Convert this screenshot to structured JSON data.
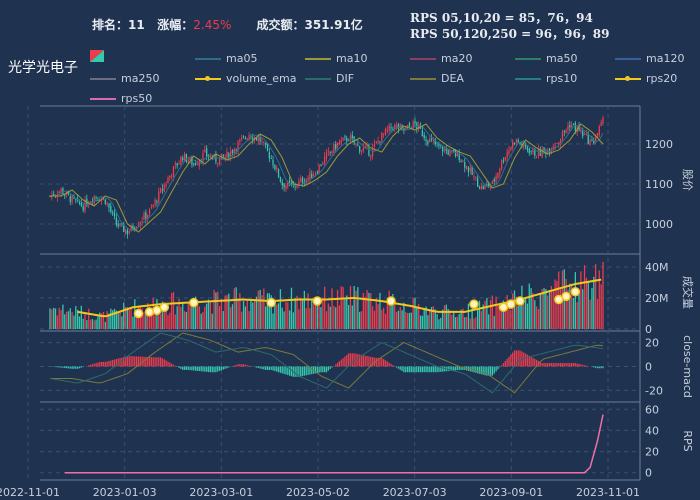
{
  "header": {
    "rank_label": "排名：",
    "rank_value": "11",
    "change_label": "涨幅：",
    "change_value": "2.45%",
    "turnover_label": "成交额：",
    "turnover_value": "351.91亿",
    "rps_line1": "RPS 05,10,20 = 85，76，94",
    "rps_line2": "RPS 50,120,250 = 96，96，89"
  },
  "stock_name": "光学光电子",
  "legend": [
    {
      "name": "ma05",
      "color": "#2f6e8a"
    },
    {
      "name": "ma10",
      "color": "#9a9a3a"
    },
    {
      "name": "ma20",
      "color": "#8a3f66"
    },
    {
      "name": "ma50",
      "color": "#2f7f6a"
    },
    {
      "name": "ma120",
      "color": "#3a5f9a"
    },
    {
      "name": "ma250",
      "color": "#6d6d80"
    },
    {
      "name": "volume_ema",
      "color": "#f2c81e"
    },
    {
      "name": "DIF",
      "color": "#2c6b6b"
    },
    {
      "name": "DEA",
      "color": "#7a7a3a"
    },
    {
      "name": "rps10",
      "color": "#2a7a8a"
    },
    {
      "name": "rps20",
      "color": "#f2c81e"
    },
    {
      "name": "rps50",
      "color": "#d968b8"
    }
  ],
  "colors": {
    "up": "#ef3b4c",
    "down": "#35c9ae",
    "bg": "#1f3250",
    "grid": "#3a5070",
    "axis": "#6b7f99"
  },
  "chart_data": {
    "type": "candlestick",
    "x_ticks": [
      "2022-11-01",
      "2023-01-03",
      "2023-03-01",
      "2023-05-02",
      "2023-07-03",
      "2023-09-01",
      "2023-11-01"
    ],
    "price": {
      "ylabel": "股价",
      "ticks": [
        1000,
        1100,
        1200
      ],
      "ylim": [
        930,
        1290
      ]
    },
    "volume": {
      "ylabel": "成交量",
      "ticks": [
        "0",
        "20M",
        "40M"
      ],
      "ylim": [
        0,
        47
      ]
    },
    "macd": {
      "ylabel": "close-macd",
      "ticks": [
        -20,
        0,
        20
      ],
      "ylim": [
        -28,
        28
      ]
    },
    "rps": {
      "ylabel": "RPS",
      "ticks": [
        0,
        20,
        40,
        60
      ],
      "ylim": [
        -5,
        65
      ]
    },
    "close_path": [
      [
        0,
        1070
      ],
      [
        6,
        1085
      ],
      [
        12,
        1060
      ],
      [
        18,
        1045
      ],
      [
        24,
        1070
      ],
      [
        30,
        1060
      ],
      [
        36,
        1000
      ],
      [
        42,
        980
      ],
      [
        48,
        1005
      ],
      [
        54,
        1030
      ],
      [
        60,
        1080
      ],
      [
        66,
        1130
      ],
      [
        72,
        1170
      ],
      [
        78,
        1150
      ],
      [
        84,
        1175
      ],
      [
        90,
        1160
      ],
      [
        96,
        1170
      ],
      [
        102,
        1200
      ],
      [
        108,
        1225
      ],
      [
        114,
        1210
      ],
      [
        120,
        1165
      ],
      [
        126,
        1100
      ],
      [
        132,
        1095
      ],
      [
        138,
        1110
      ],
      [
        144,
        1130
      ],
      [
        150,
        1170
      ],
      [
        156,
        1200
      ],
      [
        162,
        1215
      ],
      [
        168,
        1190
      ],
      [
        174,
        1180
      ],
      [
        180,
        1220
      ],
      [
        186,
        1245
      ],
      [
        192,
        1235
      ],
      [
        198,
        1250
      ],
      [
        204,
        1215
      ],
      [
        210,
        1195
      ],
      [
        216,
        1180
      ],
      [
        222,
        1170
      ],
      [
        228,
        1130
      ],
      [
        234,
        1090
      ],
      [
        240,
        1100
      ],
      [
        246,
        1165
      ],
      [
        252,
        1210
      ],
      [
        258,
        1190
      ],
      [
        264,
        1175
      ],
      [
        270,
        1185
      ],
      [
        276,
        1210
      ],
      [
        282,
        1250
      ],
      [
        288,
        1230
      ],
      [
        294,
        1200
      ],
      [
        300,
        1255
      ]
    ],
    "volume_ema_path": [
      [
        0,
        14
      ],
      [
        15,
        11
      ],
      [
        30,
        8
      ],
      [
        45,
        14
      ],
      [
        60,
        16
      ],
      [
        75,
        17
      ],
      [
        90,
        18
      ],
      [
        105,
        19
      ],
      [
        120,
        18
      ],
      [
        135,
        19
      ],
      [
        150,
        19
      ],
      [
        165,
        20
      ],
      [
        180,
        18
      ],
      [
        195,
        15
      ],
      [
        210,
        11
      ],
      [
        225,
        11
      ],
      [
        240,
        15
      ],
      [
        255,
        19
      ],
      [
        270,
        24
      ],
      [
        285,
        29
      ],
      [
        300,
        32
      ]
    ],
    "macd_dif_path": [
      [
        0,
        -10
      ],
      [
        15,
        -14
      ],
      [
        30,
        -6
      ],
      [
        45,
        12
      ],
      [
        60,
        28
      ],
      [
        75,
        22
      ],
      [
        90,
        12
      ],
      [
        105,
        16
      ],
      [
        120,
        10
      ],
      [
        135,
        -8
      ],
      [
        150,
        -18
      ],
      [
        165,
        5
      ],
      [
        180,
        20
      ],
      [
        195,
        10
      ],
      [
        210,
        0
      ],
      [
        225,
        -6
      ],
      [
        240,
        -22
      ],
      [
        255,
        6
      ],
      [
        270,
        12
      ],
      [
        285,
        18
      ],
      [
        300,
        15
      ]
    ],
    "rps_path": [
      [
        0,
        0
      ],
      [
        240,
        0
      ],
      [
        290,
        0
      ],
      [
        293,
        5
      ],
      [
        297,
        30
      ],
      [
        300,
        55
      ]
    ]
  }
}
